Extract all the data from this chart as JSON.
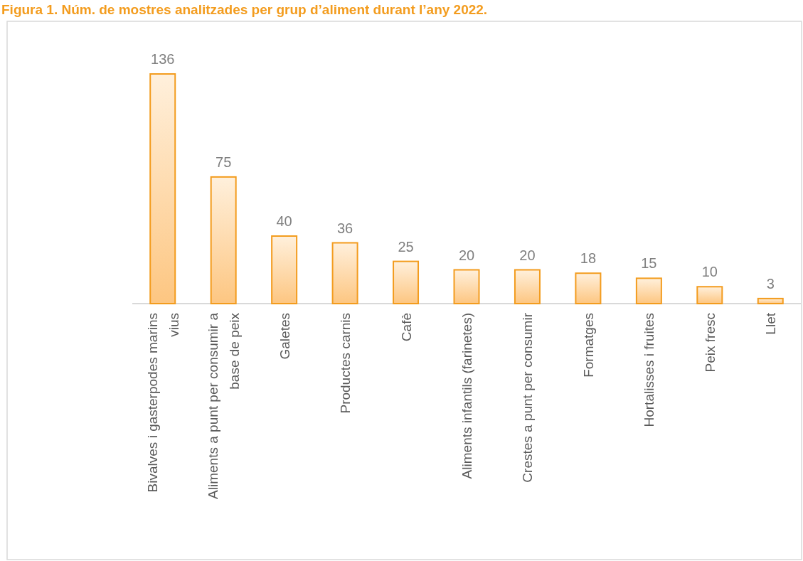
{
  "chart_data": {
    "type": "bar",
    "title": "Figura 1.  Núm. de mostres analitzades per grup d’aliment durant l’any 2022.",
    "categories": [
      "Bivalves i gasterpodes marins vius",
      "Aliments a punt per consumir a base de peix",
      "Galetes",
      "Productes carnis",
      "Cafè",
      "Aliments infantils (farinetes)",
      "Crestes a punt per consumir",
      "Formatges",
      "Hortalisses i fruites",
      "Peix fresc",
      "Llet"
    ],
    "values": [
      136,
      75,
      40,
      36,
      25,
      20,
      20,
      18,
      15,
      10,
      3
    ],
    "color": "#f39c1e",
    "data_labels": true
  }
}
